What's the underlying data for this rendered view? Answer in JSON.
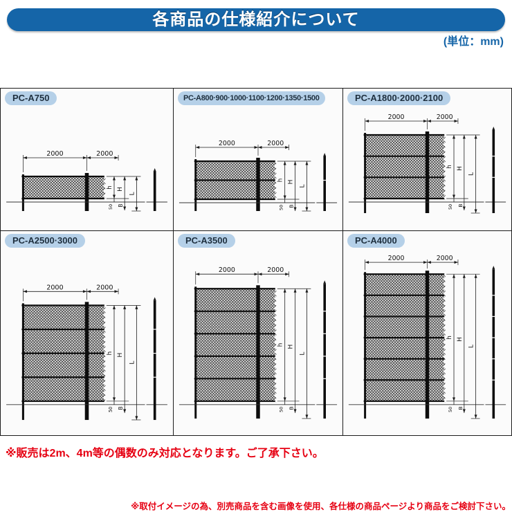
{
  "header": {
    "title": "各商品の仕様紹介について",
    "unit_note": "(単位：mm)"
  },
  "products": [
    {
      "label": "PC-A750",
      "mesh_sections": 1
    },
    {
      "label": "PC-A800·900·1000·1100·1200·1350·1500",
      "mesh_sections": 2
    },
    {
      "label": "PC-A1800·2000·2100",
      "mesh_sections": 3
    },
    {
      "label": "PC-A2500·3000",
      "mesh_sections": 4
    },
    {
      "label": "PC-A3500",
      "mesh_sections": 5
    },
    {
      "label": "PC-A4000",
      "mesh_sections": 6
    }
  ],
  "diagram_labels": {
    "span1": "2000",
    "span2": "2000",
    "mesh_height": "h",
    "fence_height": "H",
    "total_height": "L",
    "gap": "50",
    "bottom_clearance": "B"
  },
  "notes": {
    "sales": "※販売は2m、4m等の偶数のみ対応となります。ご了承下さい。",
    "disclaimer": "※取付イメージの為、別売商品を含む画像を使用、各仕様の商品ページより商品をご検討下さい。"
  },
  "colors": {
    "header_blue": "#1565a8",
    "pill_blue": "#b5d0e8",
    "note_red": "#e60012",
    "line_black": "#1c1c1c"
  }
}
